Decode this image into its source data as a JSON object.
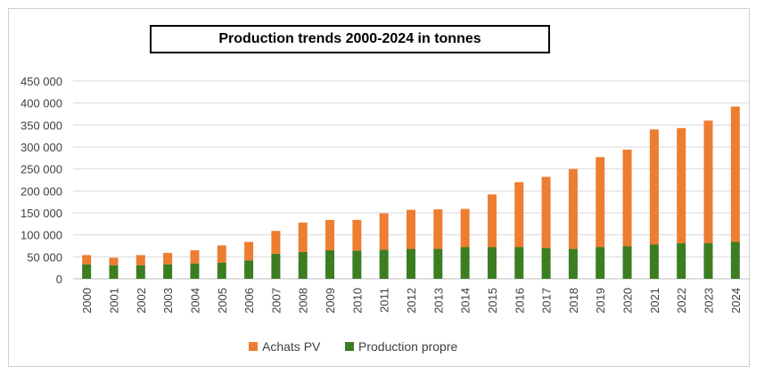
{
  "chart_data": {
    "type": "bar",
    "stacked": true,
    "title": "Production trends 2000-2024 in tonnes",
    "xlabel": "",
    "ylabel": "",
    "ylim": [
      0,
      450000
    ],
    "yticks": [
      0,
      50000,
      100000,
      150000,
      200000,
      250000,
      300000,
      350000,
      400000,
      450000
    ],
    "ytick_labels": [
      "0",
      "50 000",
      "100 000",
      "150 000",
      "200 000",
      "250 000",
      "300 000",
      "350 000",
      "400 000",
      "450 000"
    ],
    "categories": [
      "2000",
      "2001",
      "2002",
      "2003",
      "2004",
      "2005",
      "2006",
      "2007",
      "2008",
      "2009",
      "2010",
      "2011",
      "2012",
      "2013",
      "2014",
      "2015",
      "2016",
      "2017",
      "2018",
      "2019",
      "2020",
      "2021",
      "2022",
      "2023",
      "2024"
    ],
    "series": [
      {
        "name": "Production propre",
        "color": "#3c7d22",
        "values": [
          33000,
          31000,
          31000,
          33000,
          35000,
          37000,
          42000,
          57000,
          61000,
          65000,
          64000,
          66000,
          68000,
          68000,
          72000,
          72000,
          72000,
          70000,
          68000,
          72000,
          74000,
          78000,
          81000,
          81000,
          84000
        ]
      },
      {
        "name": "Achats PV",
        "color": "#ed7d31",
        "values": [
          21000,
          17000,
          23000,
          26000,
          30000,
          39000,
          42000,
          52000,
          67000,
          69000,
          70000,
          83000,
          89000,
          90000,
          87000,
          120000,
          148000,
          162000,
          182000,
          205000,
          220000,
          262000,
          262000,
          279000,
          308000
        ]
      }
    ],
    "legend": {
      "position": "bottom",
      "order": [
        "Achats PV",
        "Production propre"
      ]
    },
    "grid": true
  }
}
